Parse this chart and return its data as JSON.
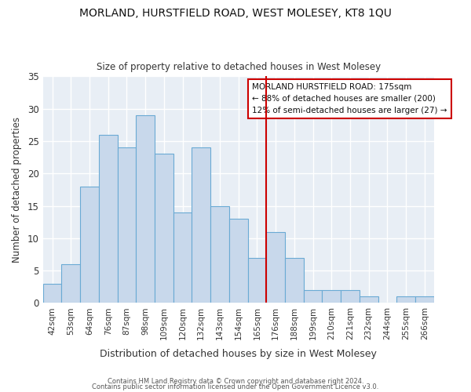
{
  "title": "MORLAND, HURSTFIELD ROAD, WEST MOLESEY, KT8 1QU",
  "subtitle": "Size of property relative to detached houses in West Molesey",
  "xlabel": "Distribution of detached houses by size in West Molesey",
  "ylabel": "Number of detached properties",
  "categories": [
    "42sqm",
    "53sqm",
    "64sqm",
    "76sqm",
    "87sqm",
    "98sqm",
    "109sqm",
    "120sqm",
    "132sqm",
    "143sqm",
    "154sqm",
    "165sqm",
    "176sqm",
    "188sqm",
    "199sqm",
    "210sqm",
    "221sqm",
    "232sqm",
    "244sqm",
    "255sqm",
    "266sqm"
  ],
  "values": [
    3,
    6,
    18,
    26,
    24,
    29,
    23,
    14,
    24,
    15,
    13,
    7,
    11,
    7,
    2,
    2,
    2,
    1,
    0,
    1,
    1
  ],
  "bar_color": "#c8d8eb",
  "bar_edge_color": "#6aaad4",
  "bar_edge_width": 0.8,
  "annotation_title": "MORLAND HURSTFIELD ROAD: 175sqm",
  "annotation_line1": "← 88% of detached houses are smaller (200)",
  "annotation_line2": "12% of semi-detached houses are larger (27) →",
  "annotation_box_color": "#ffffff",
  "annotation_edge_color": "#cc0000",
  "red_line_color": "#cc0000",
  "fig_background_color": "#ffffff",
  "plot_background_color": "#e8eef5",
  "grid_color": "#ffffff",
  "ylim": [
    0,
    35
  ],
  "yticks": [
    0,
    5,
    10,
    15,
    20,
    25,
    30,
    35
  ],
  "footnote1": "Contains HM Land Registry data © Crown copyright and database right 2024.",
  "footnote2": "Contains public sector information licensed under the Open Government Licence v3.0."
}
